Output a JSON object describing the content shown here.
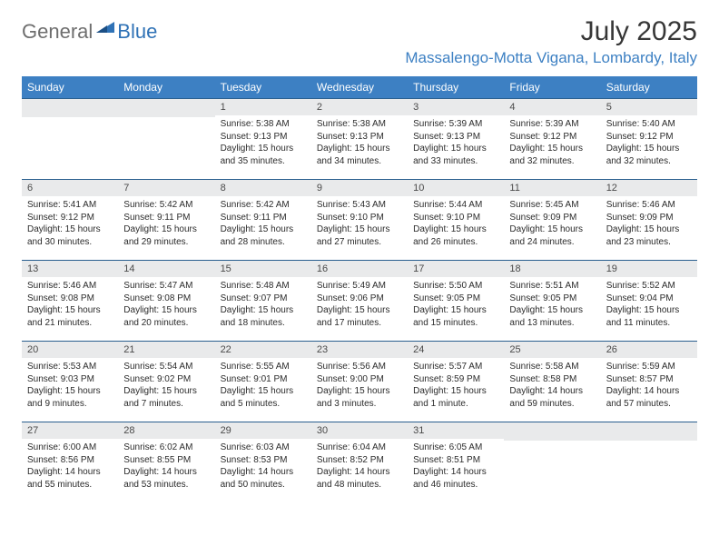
{
  "brand": {
    "part1": "General",
    "part2": "Blue"
  },
  "title": "July 2025",
  "location": "Massalengo-Motta Vigana, Lombardy, Italy",
  "colors": {
    "header_bg": "#3d80c3",
    "header_text": "#ffffff",
    "row_border": "#2a5f8f",
    "daynum_bg": "#e9eaeb",
    "brand_blue": "#2f72b6",
    "brand_gray": "#6e6e6e"
  },
  "weekdays": [
    "Sunday",
    "Monday",
    "Tuesday",
    "Wednesday",
    "Thursday",
    "Friday",
    "Saturday"
  ],
  "weeks": [
    [
      null,
      null,
      {
        "n": "1",
        "sr": "5:38 AM",
        "ss": "9:13 PM",
        "dl": "15 hours and 35 minutes."
      },
      {
        "n": "2",
        "sr": "5:38 AM",
        "ss": "9:13 PM",
        "dl": "15 hours and 34 minutes."
      },
      {
        "n": "3",
        "sr": "5:39 AM",
        "ss": "9:13 PM",
        "dl": "15 hours and 33 minutes."
      },
      {
        "n": "4",
        "sr": "5:39 AM",
        "ss": "9:12 PM",
        "dl": "15 hours and 32 minutes."
      },
      {
        "n": "5",
        "sr": "5:40 AM",
        "ss": "9:12 PM",
        "dl": "15 hours and 32 minutes."
      }
    ],
    [
      {
        "n": "6",
        "sr": "5:41 AM",
        "ss": "9:12 PM",
        "dl": "15 hours and 30 minutes."
      },
      {
        "n": "7",
        "sr": "5:42 AM",
        "ss": "9:11 PM",
        "dl": "15 hours and 29 minutes."
      },
      {
        "n": "8",
        "sr": "5:42 AM",
        "ss": "9:11 PM",
        "dl": "15 hours and 28 minutes."
      },
      {
        "n": "9",
        "sr": "5:43 AM",
        "ss": "9:10 PM",
        "dl": "15 hours and 27 minutes."
      },
      {
        "n": "10",
        "sr": "5:44 AM",
        "ss": "9:10 PM",
        "dl": "15 hours and 26 minutes."
      },
      {
        "n": "11",
        "sr": "5:45 AM",
        "ss": "9:09 PM",
        "dl": "15 hours and 24 minutes."
      },
      {
        "n": "12",
        "sr": "5:46 AM",
        "ss": "9:09 PM",
        "dl": "15 hours and 23 minutes."
      }
    ],
    [
      {
        "n": "13",
        "sr": "5:46 AM",
        "ss": "9:08 PM",
        "dl": "15 hours and 21 minutes."
      },
      {
        "n": "14",
        "sr": "5:47 AM",
        "ss": "9:08 PM",
        "dl": "15 hours and 20 minutes."
      },
      {
        "n": "15",
        "sr": "5:48 AM",
        "ss": "9:07 PM",
        "dl": "15 hours and 18 minutes."
      },
      {
        "n": "16",
        "sr": "5:49 AM",
        "ss": "9:06 PM",
        "dl": "15 hours and 17 minutes."
      },
      {
        "n": "17",
        "sr": "5:50 AM",
        "ss": "9:05 PM",
        "dl": "15 hours and 15 minutes."
      },
      {
        "n": "18",
        "sr": "5:51 AM",
        "ss": "9:05 PM",
        "dl": "15 hours and 13 minutes."
      },
      {
        "n": "19",
        "sr": "5:52 AM",
        "ss": "9:04 PM",
        "dl": "15 hours and 11 minutes."
      }
    ],
    [
      {
        "n": "20",
        "sr": "5:53 AM",
        "ss": "9:03 PM",
        "dl": "15 hours and 9 minutes."
      },
      {
        "n": "21",
        "sr": "5:54 AM",
        "ss": "9:02 PM",
        "dl": "15 hours and 7 minutes."
      },
      {
        "n": "22",
        "sr": "5:55 AM",
        "ss": "9:01 PM",
        "dl": "15 hours and 5 minutes."
      },
      {
        "n": "23",
        "sr": "5:56 AM",
        "ss": "9:00 PM",
        "dl": "15 hours and 3 minutes."
      },
      {
        "n": "24",
        "sr": "5:57 AM",
        "ss": "8:59 PM",
        "dl": "15 hours and 1 minute."
      },
      {
        "n": "25",
        "sr": "5:58 AM",
        "ss": "8:58 PM",
        "dl": "14 hours and 59 minutes."
      },
      {
        "n": "26",
        "sr": "5:59 AM",
        "ss": "8:57 PM",
        "dl": "14 hours and 57 minutes."
      }
    ],
    [
      {
        "n": "27",
        "sr": "6:00 AM",
        "ss": "8:56 PM",
        "dl": "14 hours and 55 minutes."
      },
      {
        "n": "28",
        "sr": "6:02 AM",
        "ss": "8:55 PM",
        "dl": "14 hours and 53 minutes."
      },
      {
        "n": "29",
        "sr": "6:03 AM",
        "ss": "8:53 PM",
        "dl": "14 hours and 50 minutes."
      },
      {
        "n": "30",
        "sr": "6:04 AM",
        "ss": "8:52 PM",
        "dl": "14 hours and 48 minutes."
      },
      {
        "n": "31",
        "sr": "6:05 AM",
        "ss": "8:51 PM",
        "dl": "14 hours and 46 minutes."
      },
      null,
      null
    ]
  ],
  "labels": {
    "sunrise": "Sunrise:",
    "sunset": "Sunset:",
    "daylight": "Daylight:"
  }
}
